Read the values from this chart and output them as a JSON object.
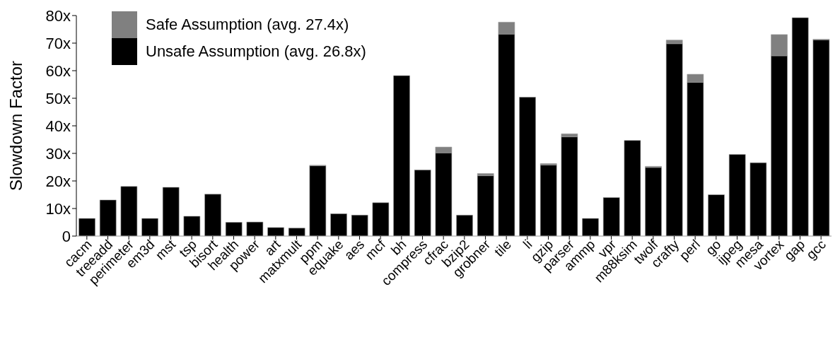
{
  "chart_data": {
    "type": "bar",
    "stacked": true,
    "ylabel": "Slowdown Factor",
    "categories": [
      "cacm",
      "treeadd",
      "perimeter",
      "em3d",
      "mst",
      "tsp",
      "bisort",
      "health",
      "power",
      "art",
      "matxmult",
      "ppm",
      "equake",
      "aes",
      "mcf",
      "bh",
      "compress",
      "cfrac",
      "bzip2",
      "grobner",
      "tile",
      "li",
      "gzip",
      "parser",
      "ammp",
      "vpr",
      "m88ksim",
      "twolf",
      "crafty",
      "perl",
      "go",
      "ijpeg",
      "mesa",
      "vortex",
      "gap",
      "gcc"
    ],
    "series": [
      {
        "name": "Unsafe Assumption (avg. 26.8x)",
        "color": "#000000",
        "values": [
          6.4,
          13.1,
          18.0,
          6.4,
          17.7,
          7.2,
          15.2,
          5.0,
          5.1,
          3.1,
          2.9,
          25.5,
          8.1,
          7.6,
          12.1,
          58.2,
          24.0,
          30.2,
          7.6,
          21.9,
          73.3,
          50.4,
          25.8,
          36.0,
          6.4,
          14.0,
          34.7,
          24.9,
          69.8,
          55.8,
          15.0,
          29.6,
          26.6,
          65.4,
          79.2,
          71.2
        ]
      },
      {
        "name": "Safe Assumption (avg. 27.4x)",
        "color": "#808080",
        "values": [
          0,
          0,
          0,
          0,
          0,
          0,
          0,
          0,
          0,
          0,
          0,
          0.2,
          0,
          0,
          0,
          0,
          0,
          2.1,
          0,
          0.8,
          4.3,
          0,
          0.5,
          1.1,
          0,
          0,
          0,
          0.4,
          1.3,
          2.9,
          0,
          0,
          0,
          7.7,
          0,
          0.2
        ]
      }
    ],
    "ylim": [
      0,
      80
    ],
    "yticks": [
      0,
      {
        "value": 10,
        "label": "10x"
      },
      {
        "value": 20,
        "label": "20x"
      },
      {
        "value": 30,
        "label": "30x"
      },
      {
        "value": 40,
        "label": "40x"
      },
      {
        "value": 50,
        "label": "50x"
      },
      {
        "value": 60,
        "label": "60x"
      },
      {
        "value": 70,
        "label": "70x"
      },
      {
        "value": 80,
        "label": "80x"
      }
    ],
    "grid": false,
    "legend": "top left"
  }
}
